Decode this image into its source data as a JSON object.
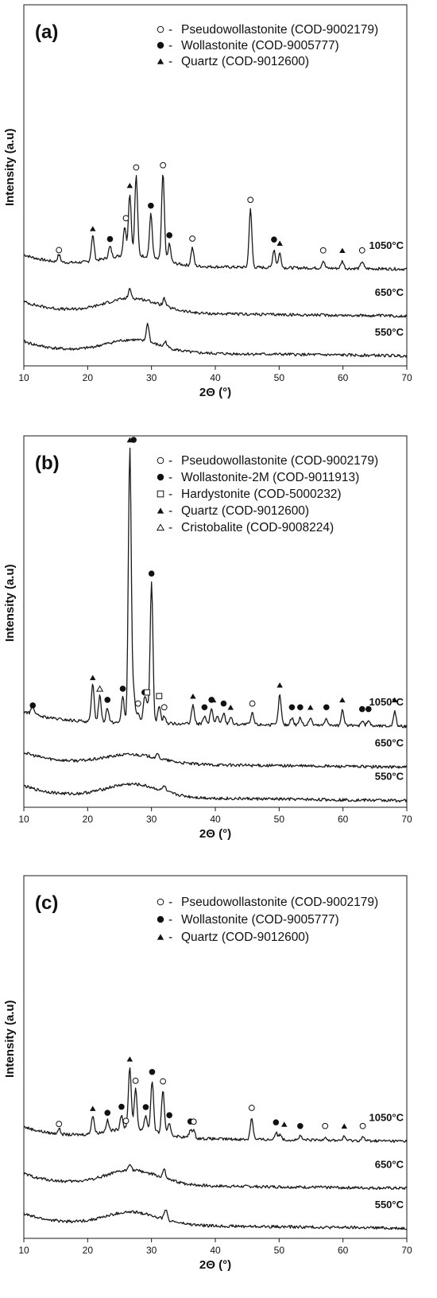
{
  "chart_data": [
    {
      "type": "line",
      "panel_label": "(a)",
      "xlabel": "2Θ (°)",
      "ylabel": "Intensity (a.u)",
      "xlim": [
        10,
        70
      ],
      "xticks": [
        10,
        20,
        30,
        40,
        50,
        60,
        70
      ],
      "grid": false,
      "legend_position": "top-right",
      "legend": [
        {
          "marker": "open-circle",
          "text": "Pseudowollastonite (COD-9002179)"
        },
        {
          "marker": "filled-circle",
          "text": "Wollastonite (COD-9005777)"
        },
        {
          "marker": "filled-triangle",
          "text": "Quartz (COD-9012600)"
        }
      ],
      "series": [
        {
          "name": "1050°C",
          "level": 0.28,
          "hump": 0.03,
          "peaks": [
            [
              15.5,
              0.02
            ],
            [
              20.8,
              0.07
            ],
            [
              23.5,
              0.03
            ],
            [
              25.8,
              0.08
            ],
            [
              26.6,
              0.17
            ],
            [
              27.6,
              0.22
            ],
            [
              29.9,
              0.12
            ],
            [
              31.8,
              0.24
            ],
            [
              32.8,
              0.05
            ],
            [
              36.4,
              0.05
            ],
            [
              45.5,
              0.16
            ],
            [
              49.2,
              0.05
            ],
            [
              50.1,
              0.04
            ],
            [
              56.9,
              0.02
            ],
            [
              59.9,
              0.02
            ],
            [
              63.0,
              0.02
            ]
          ],
          "markers": [
            [
              "open-circle",
              15.5
            ],
            [
              "filled-triangle",
              20.8
            ],
            [
              "filled-circle",
              23.5
            ],
            [
              "open-circle",
              26.0
            ],
            [
              "filled-triangle",
              26.6
            ],
            [
              "open-circle",
              27.6
            ],
            [
              "filled-circle",
              29.9
            ],
            [
              "open-circle",
              31.8
            ],
            [
              "filled-circle",
              32.8
            ],
            [
              "open-circle",
              36.4
            ],
            [
              "open-circle",
              45.5
            ],
            [
              "filled-circle",
              49.2
            ],
            [
              "filled-triangle",
              50.1
            ],
            [
              "open-circle",
              56.9
            ],
            [
              "filled-triangle",
              59.9
            ],
            [
              "open-circle",
              63.0
            ]
          ]
        },
        {
          "name": "650°C",
          "level": 0.15,
          "hump": 0.04,
          "peaks": [
            [
              26.6,
              0.025
            ],
            [
              32.0,
              0.02
            ]
          ]
        },
        {
          "name": "550°C",
          "level": 0.04,
          "hump": 0.035,
          "peaks": [
            [
              29.4,
              0.05
            ],
            [
              32.2,
              0.015
            ]
          ]
        }
      ]
    },
    {
      "type": "line",
      "panel_label": "(b)",
      "xlabel": "2Θ (°)",
      "ylabel": "Intensity (a.u)",
      "xlim": [
        10,
        70
      ],
      "xticks": [
        10,
        20,
        30,
        40,
        50,
        60,
        70
      ],
      "grid": false,
      "legend_position": "top-right",
      "legend": [
        {
          "marker": "open-circle",
          "text": "Pseudowollastonite (COD-9002179)"
        },
        {
          "marker": "filled-circle",
          "text": "Wollastonite-2M (COD-9011913)"
        },
        {
          "marker": "open-square",
          "text": "Hardystonite (COD-5000232)"
        },
        {
          "marker": "filled-triangle",
          "text": "Quartz (COD-9012600)"
        },
        {
          "marker": "open-triangle",
          "text": "Cristobalite (COD-9008224)"
        }
      ],
      "series": [
        {
          "name": "1050°C",
          "level": 0.23,
          "hump": 0.0,
          "peaks": [
            [
              11.4,
              0.025
            ],
            [
              20.8,
              0.1
            ],
            [
              21.9,
              0.07
            ],
            [
              23.1,
              0.04
            ],
            [
              25.5,
              0.07
            ],
            [
              26.6,
              0.74
            ],
            [
              27.2,
              0.08
            ],
            [
              27.9,
              0.03
            ],
            [
              28.9,
              0.06
            ],
            [
              29.3,
              0.04
            ],
            [
              30.0,
              0.38
            ],
            [
              31.2,
              0.05
            ],
            [
              32.0,
              0.02
            ],
            [
              36.5,
              0.05
            ],
            [
              38.3,
              0.02
            ],
            [
              39.4,
              0.04
            ],
            [
              40.3,
              0.02
            ],
            [
              41.3,
              0.03
            ],
            [
              42.4,
              0.02
            ],
            [
              45.8,
              0.03
            ],
            [
              50.1,
              0.08
            ],
            [
              52.0,
              0.02
            ],
            [
              53.3,
              0.02
            ],
            [
              54.9,
              0.02
            ],
            [
              57.4,
              0.02
            ],
            [
              59.9,
              0.04
            ],
            [
              63.0,
              0.015
            ],
            [
              64.0,
              0.015
            ],
            [
              68.1,
              0.04
            ]
          ],
          "markers": [
            [
              "filled-circle",
              11.4
            ],
            [
              "filled-triangle",
              20.8
            ],
            [
              "open-triangle",
              21.9
            ],
            [
              "filled-circle",
              23.1
            ],
            [
              "filled-circle",
              25.5
            ],
            [
              "filled-triangle",
              26.6
            ],
            [
              "filled-circle",
              27.2
            ],
            [
              "open-circle",
              27.9
            ],
            [
              "filled-circle",
              28.9
            ],
            [
              "open-square",
              29.3
            ],
            [
              "filled-circle",
              30.0
            ],
            [
              "open-square",
              31.2
            ],
            [
              "open-circle",
              32.0
            ],
            [
              "filled-triangle",
              36.5
            ],
            [
              "filled-circle",
              38.3
            ],
            [
              "filled-circle",
              39.4
            ],
            [
              "filled-triangle",
              39.7
            ],
            [
              "filled-circle",
              41.3
            ],
            [
              "filled-triangle",
              42.4
            ],
            [
              "open-circle",
              45.8
            ],
            [
              "filled-triangle",
              50.1
            ],
            [
              "filled-circle",
              52.0
            ],
            [
              "filled-circle",
              53.3
            ],
            [
              "filled-triangle",
              54.9
            ],
            [
              "filled-circle",
              57.4
            ],
            [
              "filled-triangle",
              59.9
            ],
            [
              "filled-circle",
              63.0
            ],
            [
              "filled-circle",
              64.0
            ],
            [
              "filled-triangle",
              68.1
            ]
          ]
        },
        {
          "name": "650°C",
          "level": 0.12,
          "hump": 0.025,
          "peaks": [
            [
              31.0,
              0.01
            ]
          ]
        },
        {
          "name": "550°C",
          "level": 0.03,
          "hump": 0.035,
          "peaks": [
            [
              32.0,
              0.015
            ]
          ]
        }
      ]
    },
    {
      "type": "line",
      "panel_label": "(c)",
      "xlabel": "2Θ (°)",
      "ylabel": "Intensity (a.u)",
      "xlim": [
        10,
        70
      ],
      "xticks": [
        10,
        20,
        30,
        40,
        50,
        60,
        70
      ],
      "grid": false,
      "legend_position": "top-right",
      "legend": [
        {
          "marker": "open-circle",
          "text": "Pseudowollastonite (COD-9002179)"
        },
        {
          "marker": "filled-circle",
          "text": "Wollastonite (COD-9005777)"
        },
        {
          "marker": "filled-triangle",
          "text": "Quartz (COD-9012600)"
        }
      ],
      "series": [
        {
          "name": "1050°C",
          "level": 0.28,
          "hump": 0.025,
          "peaks": [
            [
              15.5,
              0.015
            ],
            [
              20.8,
              0.05
            ],
            [
              23.1,
              0.03
            ],
            [
              25.3,
              0.04
            ],
            [
              26.6,
              0.17
            ],
            [
              27.5,
              0.11
            ],
            [
              29.1,
              0.04
            ],
            [
              30.1,
              0.14
            ],
            [
              31.8,
              0.12
            ],
            [
              32.8,
              0.03
            ],
            [
              36.1,
              0.02
            ],
            [
              36.6,
              0.02
            ],
            [
              45.7,
              0.06
            ],
            [
              49.5,
              0.02
            ],
            [
              50.2,
              0.015
            ],
            [
              53.3,
              0.01
            ],
            [
              57.2,
              0.01
            ],
            [
              60.2,
              0.01
            ],
            [
              63.1,
              0.01
            ]
          ],
          "markers": [
            [
              "open-circle",
              15.5
            ],
            [
              "filled-triangle",
              20.8
            ],
            [
              "filled-circle",
              23.1
            ],
            [
              "filled-circle",
              25.3
            ],
            [
              "open-circle",
              26.0
            ],
            [
              "filled-triangle",
              26.6
            ],
            [
              "open-circle",
              27.5
            ],
            [
              "filled-circle",
              29.1
            ],
            [
              "filled-circle",
              30.1
            ],
            [
              "open-circle",
              31.8
            ],
            [
              "filled-circle",
              32.8
            ],
            [
              "filled-circle",
              36.1
            ],
            [
              "open-circle",
              36.6
            ],
            [
              "open-circle",
              45.7
            ],
            [
              "filled-circle",
              49.5
            ],
            [
              "filled-triangle",
              50.8
            ],
            [
              "filled-circle",
              53.3
            ],
            [
              "open-circle",
              57.2
            ],
            [
              "filled-triangle",
              60.2
            ],
            [
              "open-circle",
              63.1
            ]
          ]
        },
        {
          "name": "650°C",
          "level": 0.15,
          "hump": 0.04,
          "peaks": [
            [
              26.6,
              0.02
            ],
            [
              32.0,
              0.025
            ]
          ]
        },
        {
          "name": "550°C",
          "level": 0.04,
          "hump": 0.035,
          "peaks": [
            [
              32.2,
              0.03
            ]
          ]
        }
      ]
    }
  ]
}
